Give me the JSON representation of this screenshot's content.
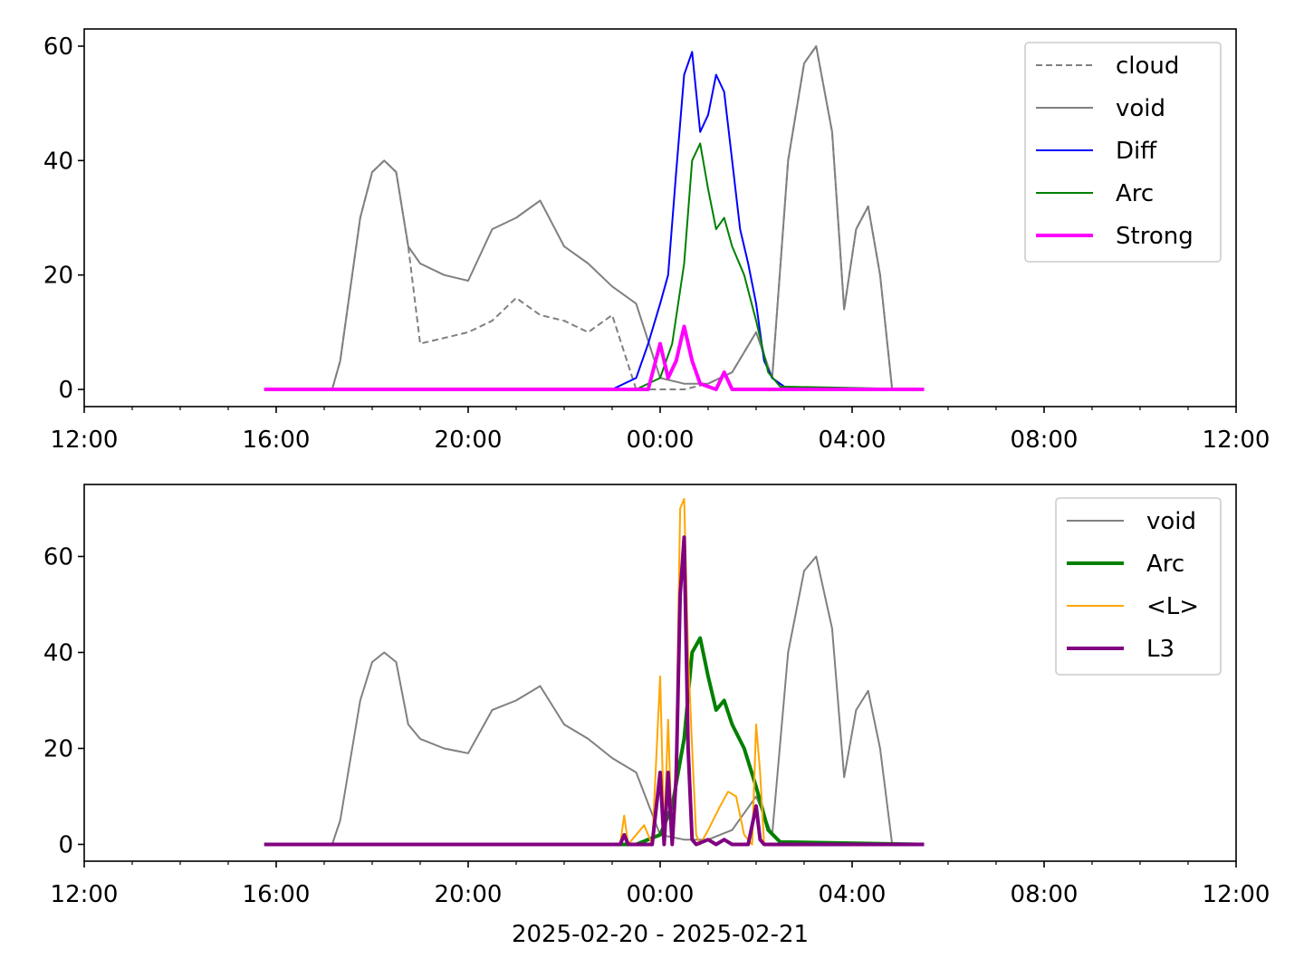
{
  "chart_data": [
    {
      "type": "line",
      "title": "",
      "xlabel": "",
      "ylabel": "",
      "xlim": [
        "2025-02-20 12:00",
        "2025-02-21 12:00"
      ],
      "ylim": [
        -3,
        63
      ],
      "xticks": [
        "12:00",
        "16:00",
        "20:00",
        "00:00",
        "04:00",
        "08:00",
        "12:00"
      ],
      "yticks": [
        0,
        20,
        40,
        60
      ],
      "grid": false,
      "legend_position": "top-right",
      "series": [
        {
          "name": "cloud",
          "color": "#808080",
          "style": "dashed",
          "x": [
            "2025-02-20 15:45",
            "2025-02-20 17:10",
            "2025-02-20 17:20",
            "2025-02-20 17:30",
            "2025-02-20 17:45",
            "2025-02-20 18:00",
            "2025-02-20 18:15",
            "2025-02-20 18:30",
            "2025-02-20 18:45",
            "2025-02-20 19:00",
            "2025-02-20 19:30",
            "2025-02-20 20:00",
            "2025-02-20 20:30",
            "2025-02-20 21:00",
            "2025-02-20 21:30",
            "2025-02-20 22:00",
            "2025-02-20 22:30",
            "2025-02-20 23:00",
            "2025-02-20 23:30",
            "2025-02-21 00:00",
            "2025-02-21 00:30",
            "2025-02-21 01:00",
            "2025-02-21 01:30",
            "2025-02-21 02:00",
            "2025-02-21 02:20",
            "2025-02-21 02:40",
            "2025-02-21 03:00",
            "2025-02-21 03:15",
            "2025-02-21 03:35",
            "2025-02-21 03:50",
            "2025-02-21 04:05",
            "2025-02-21 04:20",
            "2025-02-21 04:35",
            "2025-02-21 04:50",
            "2025-02-21 05:30"
          ],
          "values": [
            0,
            0,
            5,
            15,
            30,
            38,
            40,
            38,
            25,
            8,
            9,
            10,
            12,
            16,
            13,
            12,
            10,
            13,
            0,
            0,
            0,
            1,
            3,
            10,
            2,
            40,
            57,
            60,
            45,
            14,
            28,
            32,
            20,
            0,
            0
          ]
        },
        {
          "name": "void",
          "color": "#808080",
          "style": "solid",
          "x": [
            "2025-02-20 15:45",
            "2025-02-20 17:10",
            "2025-02-20 17:20",
            "2025-02-20 17:30",
            "2025-02-20 17:45",
            "2025-02-20 18:00",
            "2025-02-20 18:15",
            "2025-02-20 18:30",
            "2025-02-20 18:45",
            "2025-02-20 19:00",
            "2025-02-20 19:30",
            "2025-02-20 20:00",
            "2025-02-20 20:30",
            "2025-02-20 21:00",
            "2025-02-20 21:30",
            "2025-02-20 22:00",
            "2025-02-20 22:30",
            "2025-02-20 23:00",
            "2025-02-20 23:30",
            "2025-02-21 00:00",
            "2025-02-21 00:30",
            "2025-02-21 01:00",
            "2025-02-21 01:30",
            "2025-02-21 02:00",
            "2025-02-21 02:20",
            "2025-02-21 02:40",
            "2025-02-21 03:00",
            "2025-02-21 03:15",
            "2025-02-21 03:35",
            "2025-02-21 03:50",
            "2025-02-21 04:05",
            "2025-02-21 04:20",
            "2025-02-21 04:35",
            "2025-02-21 04:50",
            "2025-02-21 05:30"
          ],
          "values": [
            0,
            0,
            5,
            15,
            30,
            38,
            40,
            38,
            25,
            22,
            20,
            19,
            28,
            30,
            33,
            25,
            22,
            18,
            15,
            2,
            1,
            1,
            3,
            10,
            2,
            40,
            57,
            60,
            45,
            14,
            28,
            32,
            20,
            0,
            0
          ]
        },
        {
          "name": "Diff",
          "color": "#0000ff",
          "style": "solid",
          "x": [
            "2025-02-20 15:45",
            "2025-02-20 23:00",
            "2025-02-20 23:30",
            "2025-02-20 23:45",
            "2025-02-21 00:00",
            "2025-02-21 00:10",
            "2025-02-21 00:20",
            "2025-02-21 00:30",
            "2025-02-21 00:40",
            "2025-02-21 00:50",
            "2025-02-21 01:00",
            "2025-02-21 01:10",
            "2025-02-21 01:20",
            "2025-02-21 01:30",
            "2025-02-21 01:40",
            "2025-02-21 01:50",
            "2025-02-21 02:00",
            "2025-02-21 02:10",
            "2025-02-21 02:20",
            "2025-02-21 02:40",
            "2025-02-21 05:30"
          ],
          "values": [
            0,
            0,
            2,
            8,
            15,
            20,
            38,
            55,
            59,
            45,
            48,
            55,
            52,
            40,
            28,
            22,
            15,
            5,
            2,
            0,
            0
          ]
        },
        {
          "name": "Arc",
          "color": "#008000",
          "style": "solid",
          "x": [
            "2025-02-20 15:45",
            "2025-02-20 23:30",
            "2025-02-21 00:00",
            "2025-02-21 00:15",
            "2025-02-21 00:30",
            "2025-02-21 00:40",
            "2025-02-21 00:50",
            "2025-02-21 01:00",
            "2025-02-21 01:10",
            "2025-02-21 01:20",
            "2025-02-21 01:30",
            "2025-02-21 01:45",
            "2025-02-21 02:00",
            "2025-02-21 02:15",
            "2025-02-21 02:30",
            "2025-02-21 05:30"
          ],
          "values": [
            0,
            0,
            2,
            8,
            22,
            40,
            43,
            35,
            28,
            30,
            25,
            20,
            12,
            3,
            0.5,
            0
          ]
        },
        {
          "name": "Strong",
          "color": "#ff00ff",
          "style": "solid-thick",
          "x": [
            "2025-02-20 15:45",
            "2025-02-20 23:45",
            "2025-02-21 00:00",
            "2025-02-21 00:10",
            "2025-02-21 00:20",
            "2025-02-21 00:30",
            "2025-02-21 00:40",
            "2025-02-21 00:50",
            "2025-02-21 01:10",
            "2025-02-21 01:20",
            "2025-02-21 01:30",
            "2025-02-21 05:30"
          ],
          "values": [
            0,
            0,
            8,
            2,
            5,
            11,
            5,
            1,
            0,
            3,
            0,
            0
          ]
        }
      ]
    },
    {
      "type": "line",
      "title": "",
      "xlabel": "2025-02-20 - 2025-02-21",
      "ylabel": "",
      "xlim": [
        "2025-02-20 12:00",
        "2025-02-21 12:00"
      ],
      "ylim": [
        -3.5,
        75
      ],
      "xticks": [
        "12:00",
        "16:00",
        "20:00",
        "00:00",
        "04:00",
        "08:00",
        "12:00"
      ],
      "yticks": [
        0,
        20,
        40,
        60
      ],
      "grid": false,
      "legend_position": "top-right",
      "series": [
        {
          "name": "void",
          "color": "#808080",
          "style": "solid",
          "x": [
            "2025-02-20 15:45",
            "2025-02-20 17:10",
            "2025-02-20 17:20",
            "2025-02-20 17:30",
            "2025-02-20 17:45",
            "2025-02-20 18:00",
            "2025-02-20 18:15",
            "2025-02-20 18:30",
            "2025-02-20 18:45",
            "2025-02-20 19:00",
            "2025-02-20 19:30",
            "2025-02-20 20:00",
            "2025-02-20 20:30",
            "2025-02-20 21:00",
            "2025-02-20 21:30",
            "2025-02-20 22:00",
            "2025-02-20 22:30",
            "2025-02-20 23:00",
            "2025-02-20 23:30",
            "2025-02-21 00:00",
            "2025-02-21 00:30",
            "2025-02-21 01:00",
            "2025-02-21 01:30",
            "2025-02-21 02:00",
            "2025-02-21 02:20",
            "2025-02-21 02:40",
            "2025-02-21 03:00",
            "2025-02-21 03:15",
            "2025-02-21 03:35",
            "2025-02-21 03:50",
            "2025-02-21 04:05",
            "2025-02-21 04:20",
            "2025-02-21 04:35",
            "2025-02-21 04:50",
            "2025-02-21 05:30"
          ],
          "values": [
            0,
            0,
            5,
            15,
            30,
            38,
            40,
            38,
            25,
            22,
            20,
            19,
            28,
            30,
            33,
            25,
            22,
            18,
            15,
            2,
            1,
            1,
            3,
            10,
            2,
            40,
            57,
            60,
            45,
            14,
            28,
            32,
            20,
            0,
            0
          ]
        },
        {
          "name": "Arc",
          "color": "#008000",
          "style": "solid-thick",
          "x": [
            "2025-02-20 15:45",
            "2025-02-20 23:30",
            "2025-02-21 00:00",
            "2025-02-21 00:15",
            "2025-02-21 00:30",
            "2025-02-21 00:40",
            "2025-02-21 00:50",
            "2025-02-21 01:00",
            "2025-02-21 01:10",
            "2025-02-21 01:20",
            "2025-02-21 01:30",
            "2025-02-21 01:45",
            "2025-02-21 02:00",
            "2025-02-21 02:15",
            "2025-02-21 02:30",
            "2025-02-21 05:30"
          ],
          "values": [
            0,
            0,
            2,
            8,
            22,
            40,
            43,
            35,
            28,
            30,
            25,
            20,
            12,
            3,
            0.5,
            0
          ]
        },
        {
          "name": "<L>",
          "color": "#ffa500",
          "style": "solid",
          "x": [
            "2025-02-20 15:45",
            "2025-02-20 23:10",
            "2025-02-20 23:15",
            "2025-02-20 23:20",
            "2025-02-20 23:40",
            "2025-02-20 23:50",
            "2025-02-21 00:00",
            "2025-02-21 00:05",
            "2025-02-21 00:10",
            "2025-02-21 00:15",
            "2025-02-21 00:20",
            "2025-02-21 00:25",
            "2025-02-21 00:30",
            "2025-02-21 00:35",
            "2025-02-21 00:40",
            "2025-02-21 00:45",
            "2025-02-21 00:50",
            "2025-02-21 01:00",
            "2025-02-21 01:15",
            "2025-02-21 01:25",
            "2025-02-21 01:35",
            "2025-02-21 01:45",
            "2025-02-21 01:55",
            "2025-02-21 02:00",
            "2025-02-21 02:05",
            "2025-02-21 02:10",
            "2025-02-21 05:30"
          ],
          "values": [
            0,
            0,
            6,
            0,
            4,
            0,
            35,
            2,
            26,
            0,
            20,
            70,
            72,
            40,
            20,
            2,
            0,
            3,
            8,
            11,
            10,
            2,
            0,
            25,
            15,
            0,
            0
          ]
        },
        {
          "name": "L3",
          "color": "#800080",
          "style": "solid-thick",
          "x": [
            "2025-02-20 15:45",
            "2025-02-20 23:10",
            "2025-02-20 23:15",
            "2025-02-20 23:20",
            "2025-02-20 23:50",
            "2025-02-21 00:00",
            "2025-02-21 00:05",
            "2025-02-21 00:10",
            "2025-02-21 00:15",
            "2025-02-21 00:20",
            "2025-02-21 00:25",
            "2025-02-21 00:30",
            "2025-02-21 00:35",
            "2025-02-21 00:40",
            "2025-02-21 00:45",
            "2025-02-21 01:00",
            "2025-02-21 01:10",
            "2025-02-21 01:20",
            "2025-02-21 01:30",
            "2025-02-21 01:50",
            "2025-02-21 02:00",
            "2025-02-21 02:05",
            "2025-02-21 02:10",
            "2025-02-21 05:30"
          ],
          "values": [
            0,
            0,
            2,
            0,
            0,
            15,
            0,
            15,
            0,
            14,
            52,
            64,
            20,
            1,
            0,
            1,
            0,
            1,
            0,
            0,
            8,
            1,
            0,
            0
          ]
        }
      ]
    }
  ]
}
